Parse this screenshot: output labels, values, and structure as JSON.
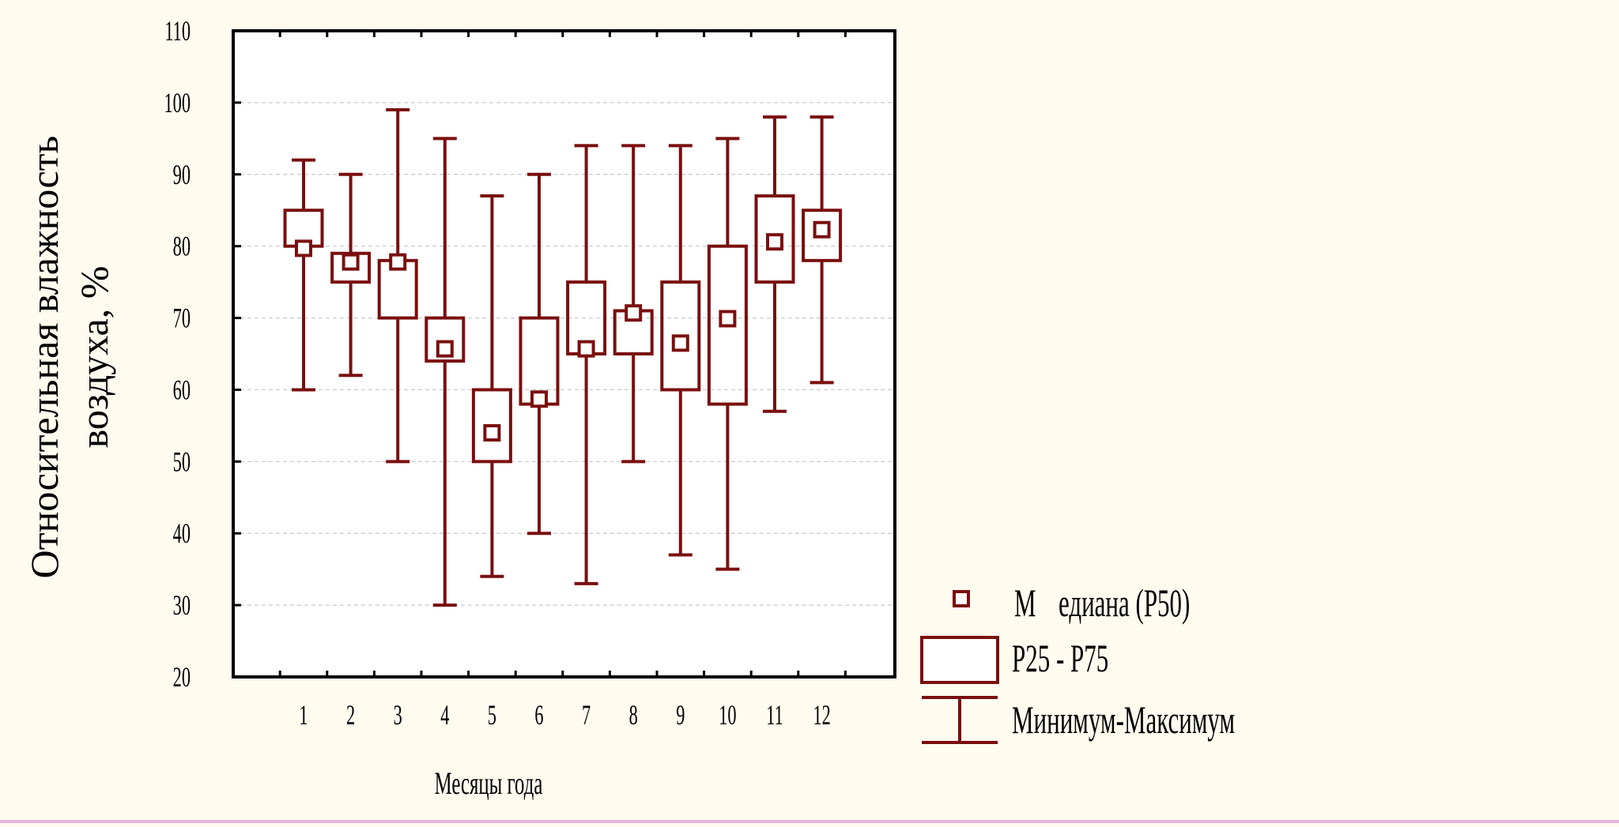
{
  "chart_data": {
    "type": "boxplot",
    "title": "",
    "xlabel": "Месяцы года",
    "ylabel_lines": [
      "Относительная влажность",
      "воздуха, %"
    ],
    "ylim": [
      20,
      110
    ],
    "yticks": [
      20,
      30,
      40,
      50,
      60,
      70,
      80,
      90,
      100,
      110
    ],
    "grid": true,
    "legend_position": "bottom-right, outside plot",
    "colors": {
      "series": "#7a0f0f",
      "grid": "#c8c8c8",
      "axis": "#000000",
      "plot_background": "#ffffff",
      "page_background": "#fffbef"
    },
    "categories": [
      "1",
      "2",
      "3",
      "4",
      "5",
      "6",
      "7",
      "8",
      "9",
      "10",
      "11",
      "12"
    ],
    "min": [
      60,
      62,
      50,
      30,
      34,
      40,
      33,
      50,
      37,
      35,
      57,
      61
    ],
    "p25": [
      80,
      75,
      70,
      64,
      50,
      58,
      65,
      65,
      60,
      58,
      75,
      78
    ],
    "median": [
      79.7,
      77.8,
      77.8,
      65.7,
      54,
      58.7,
      65.7,
      70.7,
      66.5,
      69.9,
      80.6,
      82.3
    ],
    "p75": [
      85,
      79,
      78,
      70,
      60,
      70,
      75,
      71,
      75,
      80,
      87,
      85
    ],
    "max": [
      92,
      90,
      99,
      95,
      87,
      90,
      94,
      94,
      94,
      95,
      98,
      98
    ],
    "legend": {
      "median_prefix": "М",
      "median_rest": "едиана (Р50)",
      "box": "Р25 - Р75",
      "whisker": "Минимум-Максимум"
    }
  }
}
